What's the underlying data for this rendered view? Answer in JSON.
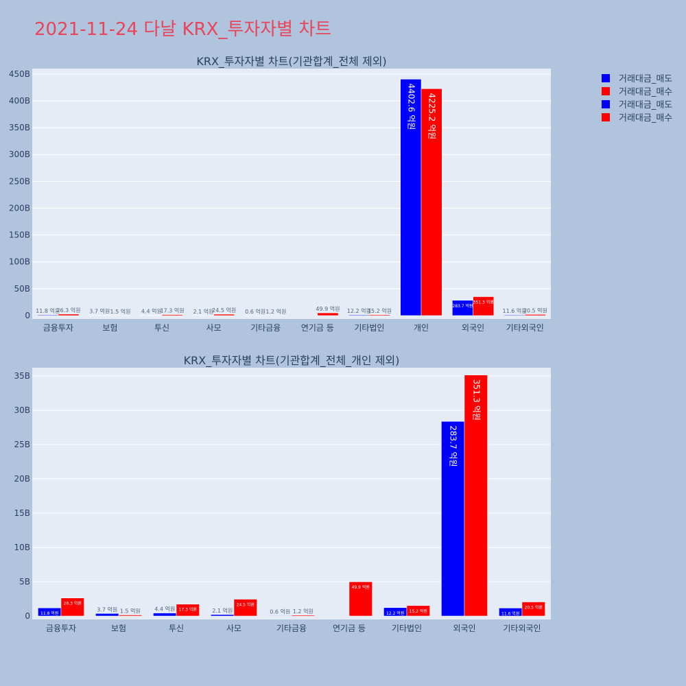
{
  "page": {
    "title": "2021-11-24 다날 KRX_투자자별 차트"
  },
  "colors": {
    "sell": "#0000ff",
    "buy": "#ff0000",
    "plot_bg": "#e5ecf6",
    "page_bg": "#b0c4de",
    "title": "#e8455a"
  },
  "legend": {
    "items": [
      {
        "label": "거래대금_매도",
        "color": "#0000ff"
      },
      {
        "label": "거래대금_매수",
        "color": "#ff0000"
      },
      {
        "label": "거래대금_매도",
        "color": "#0000ff"
      },
      {
        "label": "거래대금_매수",
        "color": "#ff0000"
      }
    ]
  },
  "chart_data": [
    {
      "type": "bar",
      "title": "KRX_투자자별 차트(기관합계_전체 제외)",
      "categories": [
        "금융투자",
        "보험",
        "투신",
        "사모",
        "기타금융",
        "연기금 등",
        "기타법인",
        "개인",
        "외국인",
        "기타외국인"
      ],
      "y_ticks": [
        "0",
        "50B",
        "100B",
        "150B",
        "200B",
        "250B",
        "300B",
        "350B",
        "400B",
        "450B"
      ],
      "ylim": [
        0,
        460
      ],
      "y_unit": "B",
      "grid": true,
      "legend_position": "top-right",
      "series": [
        {
          "name": "거래대금_매도",
          "color": "#0000ff",
          "values": [
            1.18,
            0.37,
            0.44,
            0.21,
            0.06,
            0,
            1.22,
            440.26,
            28.37,
            1.16
          ],
          "labels": [
            "11.8 억원",
            "3.7 억원",
            "4.4 억원",
            "2.1 억원",
            "0.6 억원",
            "",
            "12.2 억원",
            "4402.6 억원",
            "283.7 억원",
            "11.6 억원"
          ]
        },
        {
          "name": "거래대금_매수",
          "color": "#ff0000",
          "values": [
            2.63,
            0.15,
            1.73,
            2.45,
            0.12,
            4.99,
            1.52,
            422.52,
            35.13,
            2.05
          ],
          "labels": [
            "26.3 억원",
            "1.5 억원",
            "17.3 억원",
            "24.5 억원",
            "1.2 억원",
            "49.9 억원",
            "15.2 억원",
            "4225.2 억원",
            "351.3 억원",
            "20.5 억원"
          ]
        }
      ]
    },
    {
      "type": "bar",
      "title": "KRX_투자자별 차트(기관합계_전체_개인 제외)",
      "categories": [
        "금융투자",
        "보험",
        "투신",
        "사모",
        "기타금융",
        "연기금 등",
        "기타법인",
        "외국인",
        "기타외국인"
      ],
      "y_ticks": [
        "0",
        "5B",
        "10B",
        "15B",
        "20B",
        "25B",
        "30B",
        "35B"
      ],
      "ylim": [
        0,
        36.2
      ],
      "y_unit": "B",
      "grid": true,
      "series": [
        {
          "name": "거래대금_매도",
          "color": "#0000ff",
          "values": [
            1.18,
            0.37,
            0.44,
            0.21,
            0.06,
            0,
            1.22,
            28.37,
            1.16
          ],
          "labels": [
            "11.8 억원",
            "3.7 억원",
            "4.4 억원",
            "2.1 억원",
            "0.6 억원",
            "",
            "12.2 억원",
            "283.7 억원",
            "11.6 억원"
          ]
        },
        {
          "name": "거래대금_매수",
          "color": "#ff0000",
          "values": [
            2.63,
            0.15,
            1.73,
            2.45,
            0.12,
            4.99,
            1.52,
            35.13,
            2.05
          ],
          "labels": [
            "26.3 억원",
            "1.5 억원",
            "17.3 억원",
            "24.5 억원",
            "1.2 억원",
            "49.9 억원",
            "15.2 억원",
            "351.3 억원",
            "20.5 억원"
          ]
        }
      ]
    }
  ]
}
